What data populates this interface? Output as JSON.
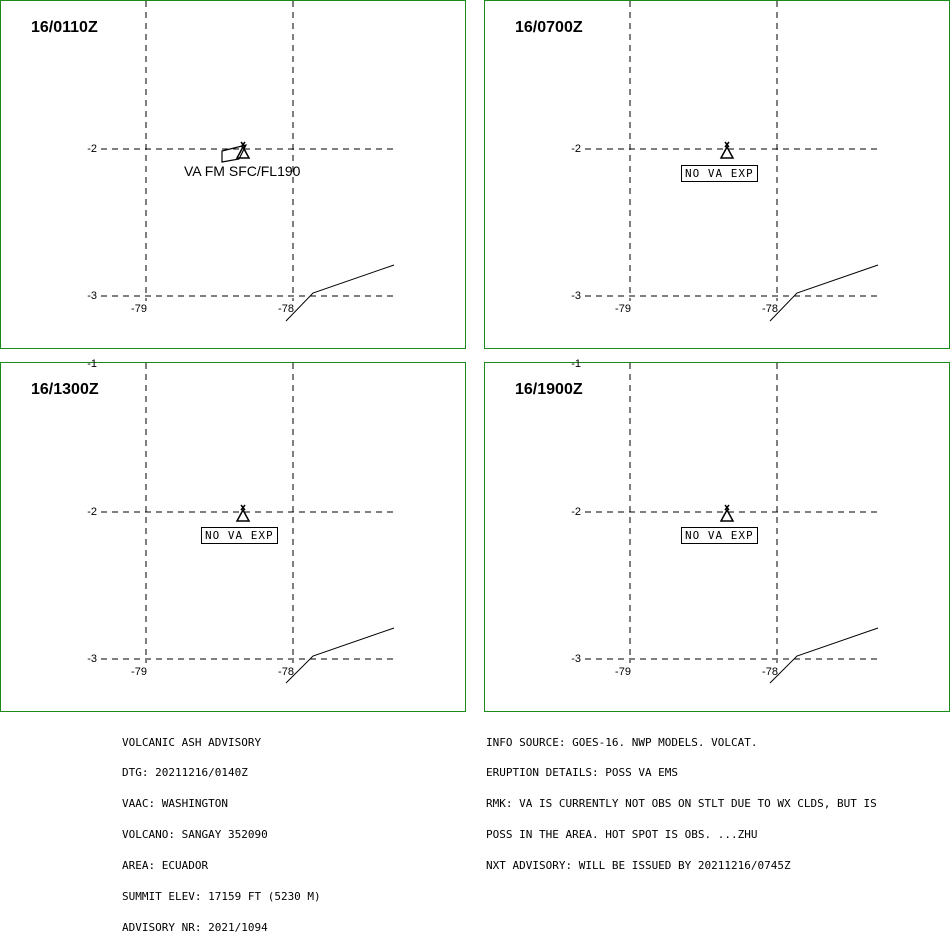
{
  "panels": [
    {
      "time": "16/0110Z",
      "label": "VA FM SFC/FL190",
      "label_type": "ash"
    },
    {
      "time": "16/0700Z",
      "label": "NO VA EXP",
      "label_type": "box"
    },
    {
      "time": "16/1300Z",
      "label": "NO VA EXP",
      "label_type": "box"
    },
    {
      "time": "16/1900Z",
      "label": "NO VA EXP",
      "label_type": "box"
    }
  ],
  "grid": {
    "lat_labels": [
      "-1",
      "-2",
      "-3"
    ],
    "lon_labels": [
      "-79",
      "-78"
    ]
  },
  "advisory_left": [
    "VOLCANIC ASH ADVISORY",
    "DTG: 20211216/0140Z",
    "VAAC: WASHINGTON",
    "VOLCANO: SANGAY 352090",
    "AREA: ECUADOR",
    "SUMMIT ELEV: 17159 FT (5230 M)",
    "ADVISORY NR: 2021/1094"
  ],
  "advisory_right": [
    "INFO SOURCE: GOES-16. NWP MODELS. VOLCAT.",
    "ERUPTION DETAILS: POSS VA EMS",
    "RMK: VA IS CURRENTLY NOT OBS ON STLT DUE TO WX CLDS, BUT IS",
    "POSS IN THE AREA. HOT SPOT IS OBS. ...ZHU",
    "NXT ADVISORY: WILL BE ISSUED BY 20211216/0745Z"
  ],
  "colors": {
    "panel_border": "#1a8a1a",
    "grid": "#000000",
    "coastline": "#000000"
  },
  "icons": {
    "volcano": "volcano-symbol-icon"
  }
}
